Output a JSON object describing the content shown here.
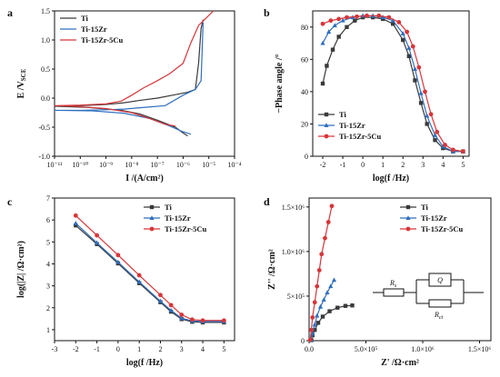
{
  "figure": {
    "panels": [
      "a",
      "b",
      "c",
      "d"
    ]
  },
  "chart_data": [
    {
      "panel": "a",
      "type": "line",
      "xlabel": "I /(A/cm²)",
      "ylabel": "E /V",
      "ylabel_sub": "SCE",
      "x_scale": "log",
      "xlim": [
        1e-11,
        0.0001
      ],
      "ylim": [
        -1.0,
        1.5
      ],
      "x_tick_labels": [
        "10⁻¹¹",
        "10⁻¹⁰",
        "10⁻⁹",
        "10⁻⁸",
        "10⁻⁷",
        "10⁻⁶",
        "10⁻⁵",
        "10⁻⁴"
      ],
      "y_ticks": [
        -1.0,
        -0.5,
        0.0,
        0.5,
        1.0,
        1.5
      ],
      "y_tick_labels": [
        "-1.0",
        "-0.5",
        "0.0",
        "0.5",
        "1.0",
        "1.5"
      ],
      "legend_position": "top-left",
      "series": [
        {
          "name": "Ti",
          "color": "#3a3a3a",
          "marker": "square",
          "points": [
            [
              1.5e-06,
              -0.65
            ],
            [
              1e-06,
              -0.6
            ],
            [
              5e-07,
              -0.5
            ],
            [
              1e-07,
              -0.38
            ],
            [
              2e-08,
              -0.27
            ],
            [
              4e-09,
              -0.21
            ],
            [
              2e-10,
              -0.16
            ],
            [
              1e-11,
              -0.14
            ],
            [
              1e-10,
              -0.13
            ],
            [
              1e-09,
              -0.11
            ],
            [
              5e-09,
              -0.08
            ],
            [
              2e-08,
              -0.04
            ],
            [
              1e-07,
              0.0
            ],
            [
              5e-07,
              0.06
            ],
            [
              1.5e-06,
              0.1
            ],
            [
              3e-06,
              0.15
            ],
            [
              4e-06,
              0.6
            ],
            [
              5e-06,
              1.2
            ],
            [
              6e-06,
              1.35
            ]
          ]
        },
        {
          "name": "Ti-15Zr",
          "color": "#2f6fbf",
          "marker": "triangle",
          "points": [
            [
              2e-06,
              -0.62
            ],
            [
              1e-06,
              -0.58
            ],
            [
              3e-07,
              -0.48
            ],
            [
              5e-08,
              -0.35
            ],
            [
              5e-09,
              -0.26
            ],
            [
              3e-10,
              -0.22
            ],
            [
              1e-11,
              -0.21
            ],
            [
              1e-10,
              -0.21
            ],
            [
              1e-09,
              -0.2
            ],
            [
              5e-09,
              -0.19
            ],
            [
              3e-08,
              -0.16
            ],
            [
              2e-07,
              -0.13
            ],
            [
              1e-06,
              0.05
            ],
            [
              3e-06,
              0.15
            ],
            [
              5e-06,
              0.3
            ],
            [
              6e-06,
              1.3
            ]
          ]
        },
        {
          "name": "Ti-15Zr-5Cu",
          "color": "#d6363a",
          "marker": "circle",
          "points": [
            [
              5e-07,
              -0.48
            ],
            [
              2e-07,
              -0.45
            ],
            [
              5e-08,
              -0.35
            ],
            [
              1e-08,
              -0.25
            ],
            [
              1e-09,
              -0.18
            ],
            [
              5e-11,
              -0.14
            ],
            [
              1e-11,
              -0.13
            ],
            [
              1e-10,
              -0.12
            ],
            [
              1e-09,
              -0.1
            ],
            [
              4e-09,
              -0.05
            ],
            [
              1e-08,
              0.05
            ],
            [
              3e-08,
              0.18
            ],
            [
              1e-07,
              0.3
            ],
            [
              3e-07,
              0.42
            ],
            [
              1e-06,
              0.6
            ],
            [
              2e-06,
              0.95
            ],
            [
              4e-06,
              1.25
            ],
            [
              8e-06,
              1.38
            ],
            [
              1.5e-05,
              1.5
            ]
          ]
        }
      ]
    },
    {
      "panel": "b",
      "type": "line",
      "xlabel": "log(f /Hz)",
      "ylabel": "−Phase angle /°",
      "xlim": [
        -2.5,
        5.3
      ],
      "ylim": [
        0,
        90
      ],
      "x_ticks": [
        -2,
        -1,
        0,
        1,
        2,
        3,
        4,
        5
      ],
      "y_ticks": [
        0,
        20,
        40,
        60,
        80
      ],
      "legend_position": "bottom-left",
      "series": [
        {
          "name": "Ti",
          "color": "#3a3a3a",
          "marker": "square",
          "points": [
            [
              -2.0,
              45
            ],
            [
              -1.8,
              56
            ],
            [
              -1.5,
              66
            ],
            [
              -1.2,
              74
            ],
            [
              -0.8,
              80
            ],
            [
              -0.4,
              84
            ],
            [
              0,
              86
            ],
            [
              0.5,
              86
            ],
            [
              1.0,
              85
            ],
            [
              1.5,
              82
            ],
            [
              2.0,
              72
            ],
            [
              2.3,
              62
            ],
            [
              2.6,
              47
            ],
            [
              2.9,
              33
            ],
            [
              3.2,
              20
            ],
            [
              3.6,
              10
            ],
            [
              4.0,
              5
            ],
            [
              4.5,
              3
            ],
            [
              5.0,
              3
            ]
          ]
        },
        {
          "name": "Ti-15Zr",
          "color": "#2f6fbf",
          "marker": "triangle",
          "points": [
            [
              -2.0,
              70
            ],
            [
              -1.7,
              77
            ],
            [
              -1.4,
              81
            ],
            [
              -1.0,
              84
            ],
            [
              -0.5,
              86
            ],
            [
              0,
              87
            ],
            [
              0.5,
              87
            ],
            [
              1.0,
              86
            ],
            [
              1.5,
              84
            ],
            [
              2.0,
              76
            ],
            [
              2.3,
              67
            ],
            [
              2.6,
              54
            ],
            [
              2.9,
              39
            ],
            [
              3.2,
              25
            ],
            [
              3.6,
              13
            ],
            [
              4.0,
              6
            ],
            [
              4.5,
              3
            ],
            [
              5.0,
              3
            ]
          ]
        },
        {
          "name": "Ti-15Zr-5Cu",
          "color": "#d6363a",
          "marker": "circle",
          "points": [
            [
              -2.0,
              82
            ],
            [
              -1.6,
              84
            ],
            [
              -1.2,
              85
            ],
            [
              -0.8,
              86
            ],
            [
              -0.3,
              86.5
            ],
            [
              0.2,
              87
            ],
            [
              0.8,
              87
            ],
            [
              1.3,
              86
            ],
            [
              1.8,
              83
            ],
            [
              2.2,
              77
            ],
            [
              2.5,
              68
            ],
            [
              2.8,
              55
            ],
            [
              3.1,
              40
            ],
            [
              3.4,
              26
            ],
            [
              3.7,
              15
            ],
            [
              4.1,
              7
            ],
            [
              4.5,
              4
            ],
            [
              5.0,
              3
            ]
          ]
        }
      ]
    },
    {
      "panel": "c",
      "type": "line",
      "xlabel": "log(f /Hz)",
      "ylabel": "log(|Z| /Ω·cm²)",
      "xlim": [
        -3,
        5.5
      ],
      "ylim": [
        0.5,
        7
      ],
      "x_ticks": [
        -3,
        -2,
        -1,
        0,
        1,
        2,
        3,
        4,
        5
      ],
      "y_ticks": [
        1,
        2,
        3,
        4,
        5,
        6,
        7
      ],
      "legend_position": "top-right",
      "series": [
        {
          "name": "Ti",
          "color": "#3a3a3a",
          "marker": "square",
          "points": [
            [
              -2,
              5.75
            ],
            [
              -1,
              4.9
            ],
            [
              0,
              4.02
            ],
            [
              1,
              3.12
            ],
            [
              2,
              2.25
            ],
            [
              2.5,
              1.82
            ],
            [
              3,
              1.48
            ],
            [
              3.5,
              1.36
            ],
            [
              4,
              1.33
            ],
            [
              5,
              1.33
            ]
          ]
        },
        {
          "name": "Ti-15Zr",
          "color": "#2f6fbf",
          "marker": "triangle",
          "points": [
            [
              -2,
              5.85
            ],
            [
              -1,
              4.96
            ],
            [
              0,
              4.08
            ],
            [
              1,
              3.18
            ],
            [
              2,
              2.3
            ],
            [
              2.5,
              1.88
            ],
            [
              3,
              1.52
            ],
            [
              3.5,
              1.4
            ],
            [
              4,
              1.37
            ],
            [
              5,
              1.37
            ]
          ]
        },
        {
          "name": "Ti-15Zr-5Cu",
          "color": "#d6363a",
          "marker": "circle",
          "points": [
            [
              -2,
              6.2
            ],
            [
              -1,
              5.3
            ],
            [
              0,
              4.4
            ],
            [
              1,
              3.48
            ],
            [
              2,
              2.58
            ],
            [
              2.5,
              2.12
            ],
            [
              3,
              1.68
            ],
            [
              3.5,
              1.46
            ],
            [
              4,
              1.42
            ],
            [
              5,
              1.42
            ]
          ]
        }
      ]
    },
    {
      "panel": "d",
      "type": "scatter",
      "xlabel": "Z' /Ω·cm²",
      "ylabel": "Z'' /Ω·cm²",
      "xlim": [
        0,
        1600000.0
      ],
      "ylim": [
        0,
        1600000.0
      ],
      "x_tick_labels": [
        "0.0",
        "5.0×10⁵",
        "1.0×10⁶",
        "1.5×10⁶"
      ],
      "y_tick_labels": [
        "0",
        "5×10⁵",
        "1.0×10⁶",
        "1.5×10⁶"
      ],
      "legend_position": "top-right",
      "circuit_labels": {
        "rs": "R",
        "rs_sub": "s",
        "q": "Q",
        "rct": "R",
        "rct_sub": "ct"
      },
      "series": [
        {
          "name": "Ti",
          "color": "#3a3a3a",
          "marker": "square",
          "points": [
            [
              20000.0,
              5000.0
            ],
            [
              30000.0,
              60000.0
            ],
            [
              50000.0,
              120000.0
            ],
            [
              80000.0,
              200000.0
            ],
            [
              120000.0,
              270000.0
            ],
            [
              180000.0,
              330000.0
            ],
            [
              250000.0,
              370000.0
            ],
            [
              320000.0,
              390000.0
            ],
            [
              380000.0,
              395000.0
            ]
          ]
        },
        {
          "name": "Ti-15Zr",
          "color": "#2f6fbf",
          "marker": "triangle",
          "points": [
            [
              20000.0,
              5000.0
            ],
            [
              30000.0,
              80000.0
            ],
            [
              50000.0,
              180000.0
            ],
            [
              70000.0,
              280000.0
            ],
            [
              100000.0,
              380000.0
            ],
            [
              130000.0,
              460000.0
            ],
            [
              160000.0,
              540000.0
            ],
            [
              190000.0,
              610000.0
            ],
            [
              220000.0,
              680000.0
            ]
          ]
        },
        {
          "name": "Ti-15Zr-5Cu",
          "color": "#d6363a",
          "marker": "circle",
          "points": [
            [
              10000.0,
              10000.0
            ],
            [
              20000.0,
              120000.0
            ],
            [
              30000.0,
              260000.0
            ],
            [
              50000.0,
              430000.0
            ],
            [
              70000.0,
              610000.0
            ],
            [
              90000.0,
              790000.0
            ],
            [
              110000.0,
              970000.0
            ],
            [
              140000.0,
              1150000.0
            ],
            [
              170000.0,
              1330000.0
            ],
            [
              200000.0,
              1510000.0
            ]
          ]
        }
      ]
    }
  ]
}
